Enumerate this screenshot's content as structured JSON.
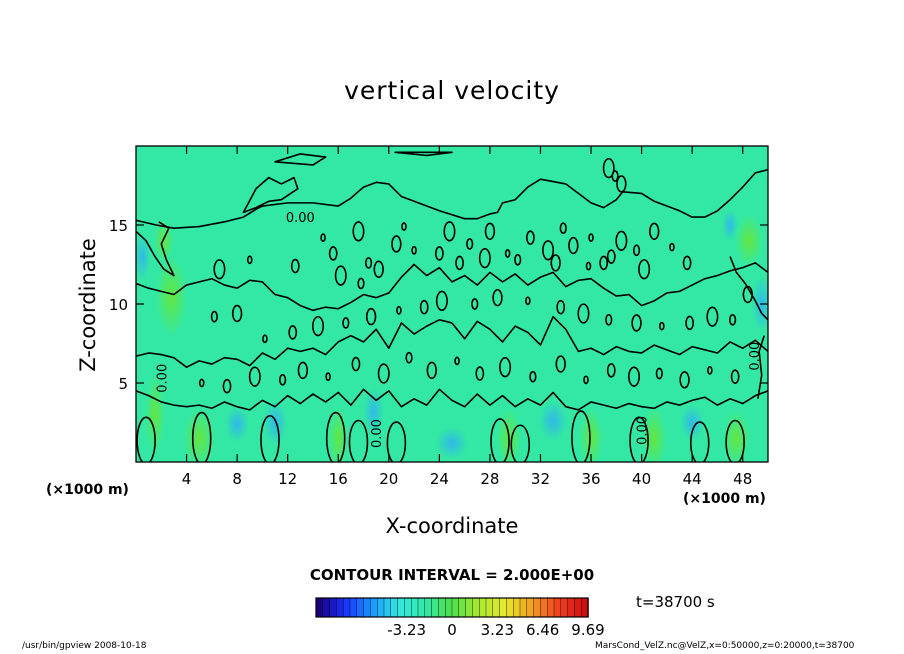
{
  "chart_data": {
    "type": "heatmap",
    "title": "vertical velocity",
    "xlabel": "X-coordinate",
    "ylabel": "Z-coordinate",
    "x_unit": "(×1000 m)",
    "y_unit": "(×1000 m)",
    "xlim": [
      0,
      50
    ],
    "ylim": [
      0,
      20
    ],
    "x_ticks": [
      4,
      8,
      12,
      16,
      20,
      24,
      28,
      32,
      36,
      40,
      44,
      48
    ],
    "y_ticks": [
      5,
      10,
      15
    ],
    "x_tick_labels": [
      "4",
      "8",
      "12",
      "16",
      "20",
      "24",
      "28",
      "32",
      "36",
      "40",
      "44",
      "48"
    ],
    "y_tick_labels": [
      "5",
      "10",
      "15"
    ],
    "contour_labels": [
      {
        "x": 13.0,
        "y": 15.2,
        "text": "0.00"
      },
      {
        "x": 19.4,
        "y": 1.8,
        "text": "0.00"
      },
      {
        "x": 40.4,
        "y": 2.0,
        "text": "0.00"
      },
      {
        "x": 2.4,
        "y": 5.3,
        "text": "0.00"
      },
      {
        "x": 49.3,
        "y": 6.7,
        "text": "0.00"
      }
    ],
    "contour_interval": "CONTOUR INTERVAL = 2.000E+00",
    "colorbar": {
      "min": -9.69,
      "max": 9.69,
      "tick_labels": [
        "-3.23",
        "0",
        "3.23",
        "6.46",
        "9.69"
      ],
      "tick_values": [
        -3.23,
        0,
        3.23,
        6.46,
        9.69
      ]
    },
    "time": "t=38700 s",
    "grid": false
  },
  "footer": {
    "left": "/usr/bin/gpview   2008-10-18",
    "right": "MarsCond_VelZ.nc@VelZ,x=0:50000,z=0:20000,t=38700"
  },
  "colors": {
    "field_background": "#33e8a4",
    "contour_line": "#000000"
  }
}
